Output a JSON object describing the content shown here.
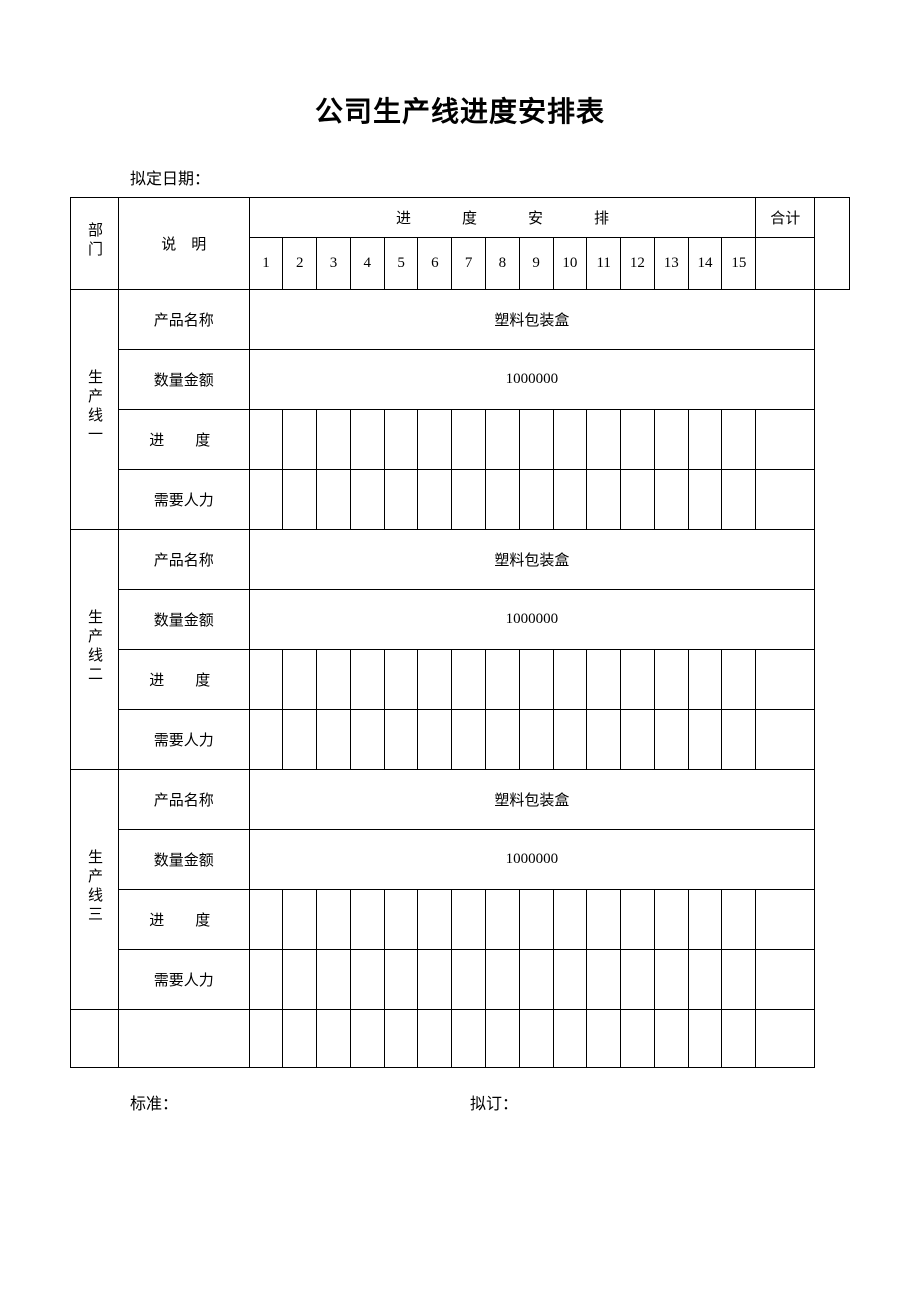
{
  "title": "公司生产线进度安排表",
  "date_label": "拟定日期：",
  "header": {
    "dept": "部门",
    "desc": "说　明",
    "schedule": "进　度　安　排",
    "total": "合计",
    "days": [
      "1",
      "2",
      "3",
      "4",
      "5",
      "6",
      "7",
      "8",
      "9",
      "10",
      "11",
      "12",
      "13",
      "14",
      "15"
    ]
  },
  "row_labels": {
    "product_name": "产品名称",
    "qty_amount": "数量金额",
    "progress": "进　度",
    "labor": "需要人力"
  },
  "lines": [
    {
      "dept": "生产线一",
      "product": "塑料包装盒",
      "qty": "1000000"
    },
    {
      "dept": "生产线二",
      "product": "塑料包装盒",
      "qty": "1000000"
    },
    {
      "dept": "生产线三",
      "product": "塑料包装盒",
      "qty": "1000000"
    }
  ],
  "footer": {
    "standard": "标准：",
    "drafted": "拟订："
  },
  "colors": {
    "border": "#000000",
    "background": "#ffffff",
    "text": "#000000"
  }
}
